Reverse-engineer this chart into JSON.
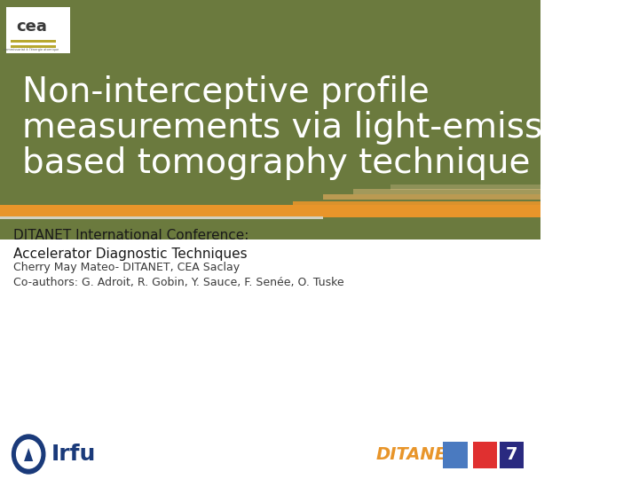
{
  "title_line1": "Non-interceptive profile",
  "title_line2": "measurements via light-emission",
  "title_line3": "based tomography technique",
  "title_color": "#FFFFFF",
  "title_bg_color": "#6B7A3E",
  "header_bg_color": "#6B7A3E",
  "top_bar_color": "#8B9A50",
  "orange_bar_color": "#E8952A",
  "white_bg_color": "#FFFFFF",
  "conference_line1": "DITANET International Conference:",
  "conference_line2": "Accelerator Diagnostic Techniques",
  "author_line": "Cherry May Mateo- DITANET, CEA Saclay",
  "coauthor_line": "Co-authors: G. Adroit, R. Gobin, Y. Sauce, F. Senée, O. Tuske",
  "text_color": "#1A1A1A",
  "logo_left_text": "Irfu",
  "cea_logo_color": "#FFFFFF",
  "slide_bg": "#FFFFFF"
}
